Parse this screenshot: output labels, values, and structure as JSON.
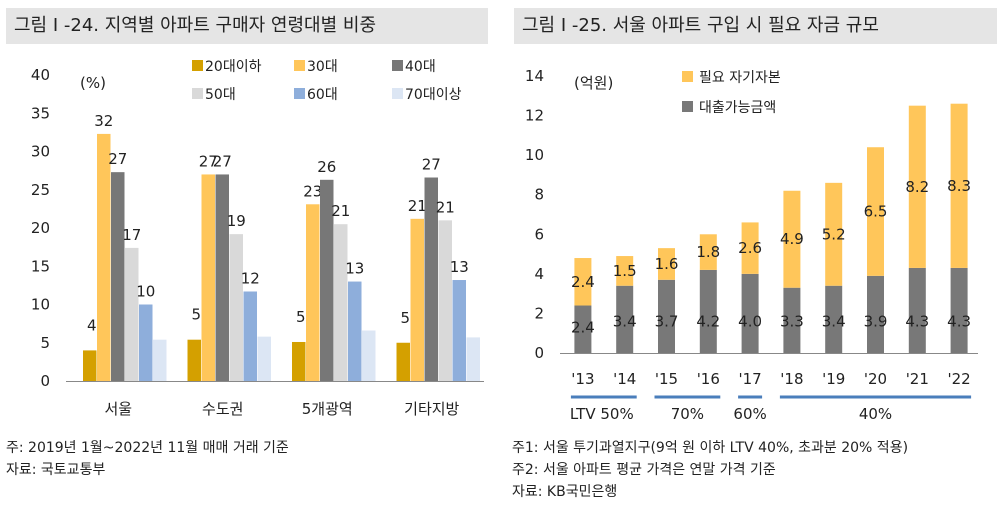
{
  "left": {
    "title": "그림 I -24. 지역별 아파트 구매자 연령대별 비중",
    "notes": [
      "주: 2019년 1월~2022년 11월 매매 거래 기준",
      "자료: 국토교통부"
    ]
  },
  "right": {
    "title": "그림 I -25. 서울 아파트 구입 시 필요 자금 규모",
    "notes": [
      "주1: 서울 투기과열지구(9억 원 이하 LTV 40%, 초과분 20% 적용)",
      "주2: 서울 아파트 평균 가격은 연말 가격 기준",
      "자료: KB국민은행"
    ],
    "ltv": [
      {
        "label": "LTV 50%",
        "start": 0,
        "end": 1
      },
      {
        "label": "70%",
        "start": 2,
        "end": 3
      },
      {
        "label": "60%",
        "start": 4,
        "end": 4
      },
      {
        "label": "40%",
        "start": 5,
        "end": 9
      }
    ]
  },
  "chart_data": [
    {
      "type": "bar",
      "unit": "(%)",
      "categories": [
        "서울",
        "수도권",
        "5개광역",
        "기타지방"
      ],
      "ylim": [
        0,
        40
      ],
      "yticks": [
        0,
        5,
        10,
        15,
        20,
        25,
        30,
        35,
        40
      ],
      "series": [
        {
          "name": "20대이하",
          "color": "#d4a000",
          "values": [
            4,
            5,
            5,
            5
          ]
        },
        {
          "name": "30대",
          "color": "#ffc65a",
          "values": [
            32,
            27,
            23,
            21
          ]
        },
        {
          "name": "40대",
          "color": "#777777",
          "values": [
            27,
            27,
            26,
            27
          ]
        },
        {
          "name": "50대",
          "color": "#d9d9d9",
          "values": [
            17,
            19,
            21,
            21
          ]
        },
        {
          "name": "60대",
          "color": "#8eaedb",
          "values": [
            10,
            12,
            13,
            13
          ]
        },
        {
          "name": "70대이상",
          "color": "#dce6f4",
          "values": [
            null,
            null,
            null,
            null
          ]
        }
      ],
      "raw_values": {
        "20대이하": [
          4.0,
          5.4,
          5.1,
          5.0
        ],
        "30대": [
          32.3,
          27.0,
          23.1,
          21.2
        ],
        "40대": [
          27.3,
          27.0,
          26.3,
          26.6
        ],
        "50대": [
          17.4,
          19.2,
          20.5,
          21.0
        ],
        "60대": [
          10.0,
          11.7,
          13.0,
          13.2
        ],
        "70대이상": [
          5.4,
          5.8,
          6.6,
          5.7
        ]
      },
      "legend": "top"
    },
    {
      "type": "bar",
      "stacked": true,
      "unit": "(억원)",
      "categories": [
        "'13",
        "'14",
        "'15",
        "'16",
        "'17",
        "'18",
        "'19",
        "'20",
        "'21",
        "'22"
      ],
      "ylim": [
        0,
        14
      ],
      "yticks": [
        0,
        2,
        4,
        6,
        8,
        10,
        12,
        14
      ],
      "series": [
        {
          "name": "대출가능금액",
          "color": "#787878",
          "values": [
            2.4,
            3.4,
            3.7,
            4.2,
            4.0,
            3.3,
            3.4,
            3.9,
            4.3,
            4.3
          ]
        },
        {
          "name": "필요 자기자본",
          "color": "#ffc65a",
          "values": [
            2.4,
            1.5,
            1.6,
            1.8,
            2.6,
            4.9,
            5.2,
            6.5,
            8.2,
            8.3
          ]
        }
      ],
      "legend": "top-left"
    }
  ]
}
